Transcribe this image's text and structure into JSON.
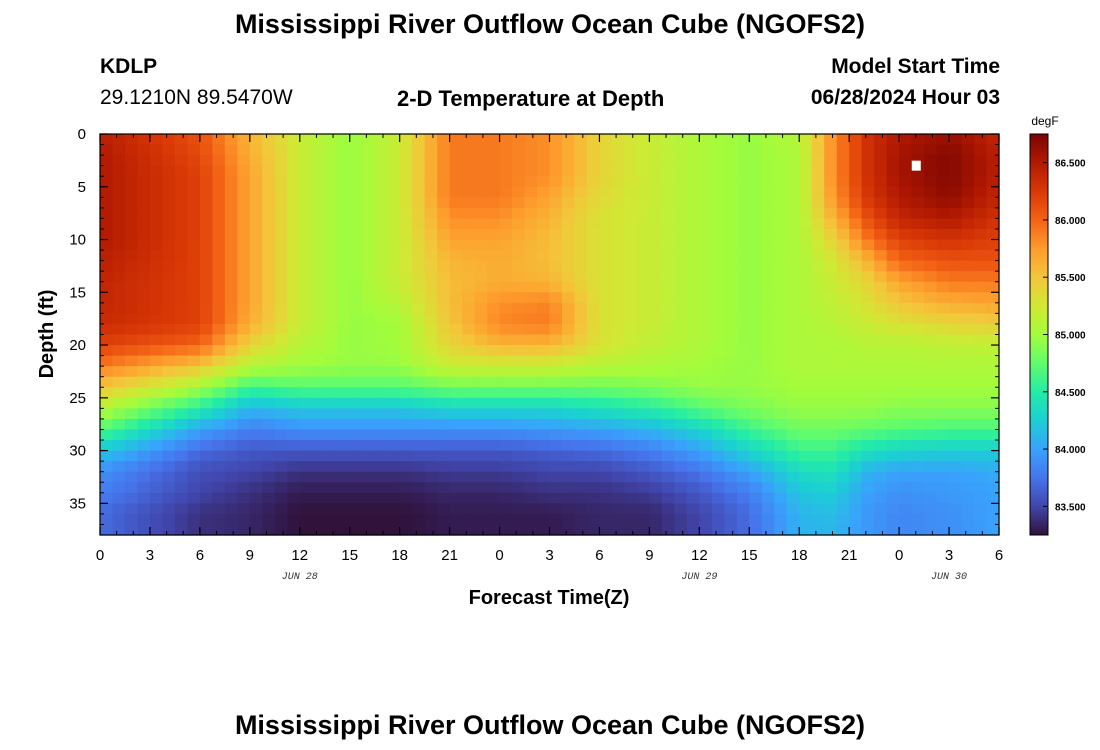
{
  "header": {
    "title": "Mississippi River Outflow Ocean Cube (NGOFS2)",
    "station_id": "KDLP",
    "coordinates": "29.1210N  89.5470W",
    "subtitle": "2-D Temperature at Depth",
    "model_start_label": "Model Start Time",
    "model_start_value": "06/28/2024 Hour 03"
  },
  "footer": {
    "title": "Mississippi River Outflow Ocean Cube (NGOFS2)"
  },
  "chart_data": {
    "type": "heatmap",
    "title": "2-D Temperature at Depth",
    "xlabel": "Forecast Time(Z)",
    "ylabel": "Depth (ft)",
    "x_hours_since_start_ticks": [
      0,
      3,
      6,
      9,
      12,
      15,
      18,
      21,
      24,
      27,
      30,
      33,
      36,
      39,
      42,
      45,
      48,
      51,
      54
    ],
    "x_tick_labels": [
      "0",
      "3",
      "6",
      "9",
      "12",
      "15",
      "18",
      "21",
      "0",
      "3",
      "6",
      "9",
      "12",
      "15",
      "18",
      "21",
      "0",
      "3",
      "6"
    ],
    "date_labels": [
      {
        "text": "JUN 28",
        "at_tick": 12
      },
      {
        "text": "JUN 29",
        "at_tick": 36
      },
      {
        "text": "JUN 30",
        "at_tick": 51
      }
    ],
    "y_ticks": [
      0,
      5,
      10,
      15,
      20,
      25,
      30,
      35
    ],
    "ylim": [
      0,
      38
    ],
    "xlim": [
      0,
      54
    ],
    "colorbar": {
      "unit": "degF",
      "min": 83.25,
      "max": 86.75,
      "ticks": [
        "83.500",
        "84.000",
        "84.500",
        "85.000",
        "85.500",
        "86.000",
        "86.500"
      ],
      "tick_values": [
        83.5,
        84.0,
        84.5,
        85.0,
        85.5,
        86.0,
        86.5
      ]
    },
    "depth_levels_ft": [
      0,
      2,
      4,
      6,
      8,
      10,
      12,
      14,
      16,
      18,
      20,
      22,
      24,
      26,
      28,
      30,
      32,
      34,
      36,
      38
    ],
    "profiles": [
      {
        "hour": 0,
        "values": [
          86.45,
          86.5,
          86.5,
          86.5,
          86.5,
          86.5,
          86.45,
          86.4,
          86.4,
          86.35,
          86.2,
          85.9,
          85.5,
          85.1,
          84.7,
          84.2,
          83.9,
          83.8,
          83.7,
          83.7
        ]
      },
      {
        "hour": 6,
        "values": [
          86.1,
          86.15,
          86.2,
          86.2,
          86.2,
          86.2,
          86.2,
          86.2,
          86.2,
          86.2,
          86.0,
          85.5,
          85.0,
          84.5,
          84.0,
          83.7,
          83.55,
          83.5,
          83.4,
          83.4
        ]
      },
      {
        "hour": 9,
        "values": [
          85.6,
          85.65,
          85.7,
          85.7,
          85.7,
          85.7,
          85.7,
          85.7,
          85.7,
          85.65,
          85.4,
          85.1,
          84.6,
          84.1,
          83.8,
          83.6,
          83.5,
          83.4,
          83.35,
          83.35
        ]
      },
      {
        "hour": 12,
        "values": [
          85.2,
          85.2,
          85.2,
          85.2,
          85.2,
          85.2,
          85.2,
          85.2,
          85.2,
          85.2,
          85.1,
          85.0,
          84.7,
          84.2,
          83.9,
          83.6,
          83.4,
          83.3,
          83.25,
          83.25
        ]
      },
      {
        "hour": 15,
        "values": [
          84.95,
          84.95,
          84.95,
          84.95,
          84.95,
          84.95,
          84.95,
          84.95,
          84.95,
          84.95,
          84.95,
          84.95,
          84.7,
          84.2,
          83.9,
          83.6,
          83.4,
          83.3,
          83.25,
          83.25
        ]
      },
      {
        "hour": 18,
        "values": [
          85.2,
          85.2,
          85.2,
          85.2,
          85.2,
          85.2,
          85.2,
          85.2,
          85.1,
          85.0,
          85.0,
          84.95,
          84.7,
          84.2,
          83.9,
          83.6,
          83.4,
          83.3,
          83.25,
          83.25
        ]
      },
      {
        "hour": 21,
        "values": [
          85.9,
          85.9,
          85.9,
          85.9,
          85.8,
          85.7,
          85.6,
          85.55,
          85.55,
          85.5,
          85.4,
          85.2,
          84.8,
          84.3,
          83.9,
          83.6,
          83.45,
          83.35,
          83.3,
          83.3
        ]
      },
      {
        "hour": 24,
        "values": [
          85.9,
          85.9,
          85.9,
          85.9,
          85.8,
          85.7,
          85.65,
          85.65,
          85.8,
          85.85,
          85.6,
          85.2,
          84.8,
          84.3,
          83.9,
          83.6,
          83.45,
          83.35,
          83.3,
          83.3
        ]
      },
      {
        "hour": 27,
        "values": [
          85.8,
          85.8,
          85.8,
          85.7,
          85.6,
          85.55,
          85.55,
          85.6,
          85.85,
          85.9,
          85.6,
          85.2,
          84.8,
          84.3,
          83.95,
          83.65,
          83.5,
          83.4,
          83.3,
          83.3
        ]
      },
      {
        "hour": 30,
        "values": [
          85.4,
          85.4,
          85.4,
          85.35,
          85.3,
          85.3,
          85.3,
          85.3,
          85.3,
          85.3,
          85.3,
          85.1,
          84.8,
          84.4,
          84.0,
          83.7,
          83.5,
          83.4,
          83.35,
          83.35
        ]
      },
      {
        "hour": 33,
        "values": [
          85.2,
          85.2,
          85.2,
          85.2,
          85.2,
          85.2,
          85.2,
          85.2,
          85.2,
          85.2,
          85.15,
          85.05,
          84.85,
          84.5,
          84.1,
          83.8,
          83.6,
          83.45,
          83.35,
          83.35
        ]
      },
      {
        "hour": 36,
        "values": [
          85.05,
          85.05,
          85.05,
          85.05,
          85.05,
          85.05,
          85.05,
          85.05,
          85.05,
          85.05,
          85.05,
          85.0,
          84.95,
          84.7,
          84.3,
          84.0,
          83.75,
          83.6,
          83.5,
          83.5
        ]
      },
      {
        "hour": 39,
        "values": [
          84.95,
          84.95,
          84.95,
          84.95,
          84.95,
          84.95,
          84.95,
          84.95,
          84.95,
          84.95,
          84.95,
          84.95,
          84.95,
          84.85,
          84.6,
          84.3,
          84.0,
          83.8,
          83.7,
          83.7
        ]
      },
      {
        "hour": 42,
        "values": [
          85.1,
          85.05,
          85.05,
          85.05,
          85.05,
          85.05,
          85.05,
          85.05,
          85.05,
          85.05,
          85.05,
          85.05,
          85.0,
          84.95,
          84.8,
          84.6,
          84.35,
          84.2,
          84.1,
          84.1
        ]
      },
      {
        "hour": 44,
        "values": [
          85.8,
          85.8,
          85.8,
          85.75,
          85.6,
          85.4,
          85.25,
          85.2,
          85.15,
          85.1,
          85.05,
          85.05,
          85.0,
          84.95,
          84.8,
          84.6,
          84.4,
          84.25,
          84.15,
          84.1
        ]
      },
      {
        "hour": 46,
        "values": [
          86.3,
          86.3,
          86.3,
          86.25,
          86.1,
          85.9,
          85.6,
          85.4,
          85.3,
          85.2,
          85.1,
          85.05,
          85.0,
          84.95,
          84.75,
          84.4,
          84.1,
          84.0,
          83.95,
          83.95
        ]
      },
      {
        "hour": 48,
        "values": [
          86.5,
          86.55,
          86.55,
          86.5,
          86.4,
          86.2,
          86.0,
          85.7,
          85.5,
          85.3,
          85.1,
          85.05,
          85.0,
          84.9,
          84.7,
          84.3,
          84.0,
          83.9,
          83.85,
          83.85
        ]
      },
      {
        "hour": 51,
        "values": [
          86.6,
          86.7,
          86.7,
          86.65,
          86.5,
          86.3,
          86.1,
          85.9,
          85.65,
          85.4,
          85.15,
          85.05,
          85.0,
          84.9,
          84.65,
          84.25,
          84.0,
          83.95,
          83.9,
          83.9
        ]
      },
      {
        "hour": 54,
        "values": [
          86.4,
          86.45,
          86.45,
          86.4,
          86.3,
          86.2,
          86.1,
          85.9,
          85.7,
          85.45,
          85.15,
          85.05,
          85.0,
          84.9,
          84.65,
          84.25,
          84.05,
          84.0,
          84.0,
          84.0
        ]
      }
    ],
    "marker": {
      "hour": 49,
      "depth_ft": 3.0,
      "color": "#ffffff"
    },
    "colormap": [
      "#30123b",
      "#4145ab",
      "#4675ed",
      "#39a2fc",
      "#1bcfd4",
      "#24eca6",
      "#61fc6c",
      "#a4fc3b",
      "#d1e834",
      "#f3c63a",
      "#fe9b2d",
      "#f36315",
      "#d93806",
      "#b11901",
      "#7a0402"
    ]
  }
}
